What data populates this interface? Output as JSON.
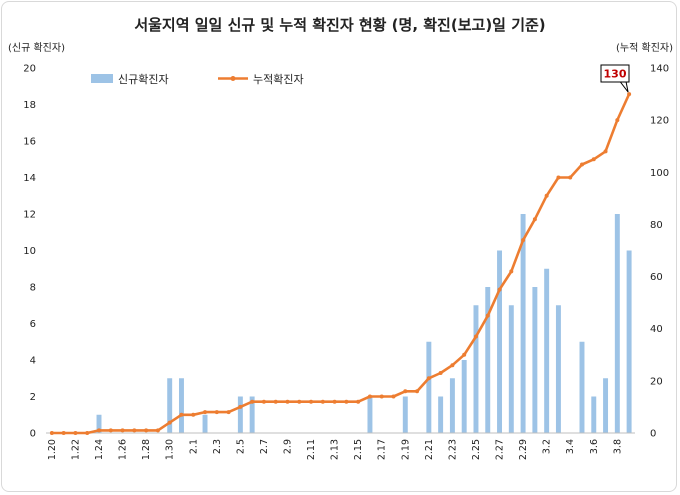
{
  "chart_data": {
    "type": "bar+line",
    "title": "서울지역 일일 신규 및 누적 확진자 현황 (명, 확진(보고)일 기준)",
    "ylabel_left": "(신규 확진자)",
    "ylabel_right": "(누적 확진자)",
    "ylim_left": [
      0,
      20
    ],
    "ylim_right": [
      0,
      140
    ],
    "yticks_left": [
      "0",
      "2",
      "4",
      "6",
      "8",
      "10",
      "12",
      "14",
      "16",
      "18",
      "20"
    ],
    "yticks_right": [
      "0",
      "20",
      "40",
      "60",
      "80",
      "100",
      "120",
      "140"
    ],
    "x": [
      "1.20",
      "1.21",
      "1.22",
      "1.23",
      "1.24",
      "1.25",
      "1.26",
      "1.27",
      "1.28",
      "1.29",
      "1.30",
      "1.31",
      "2.1",
      "2.2",
      "2.3",
      "2.4",
      "2.5",
      "2.6",
      "2.7",
      "2.8",
      "2.9",
      "2.10",
      "2.11",
      "2.12",
      "2.13",
      "2.14",
      "2.15",
      "2.16",
      "2.17",
      "2.18",
      "2.19",
      "2.20",
      "2.21",
      "2.22",
      "2.23",
      "2.24",
      "2.25",
      "2.26",
      "2.27",
      "2.28",
      "2.29",
      "3.1",
      "3.2",
      "3.3",
      "3.4",
      "3.5",
      "3.6",
      "3.7",
      "3.8",
      "3.9"
    ],
    "x_tick_labels": [
      "1.20",
      "1.22",
      "1.24",
      "1.26",
      "1.28",
      "1.30",
      "2.1",
      "2.3",
      "2.5",
      "2.7",
      "2.9",
      "2.11",
      "2.13",
      "2.15",
      "2.17",
      "2.19",
      "2.21",
      "2.23",
      "2.25",
      "2.27",
      "2.29",
      "3.2",
      "3.4",
      "3.6",
      "3.8"
    ],
    "series": [
      {
        "name": "신규확진자",
        "kind": "bar",
        "axis": "left",
        "color": "#9dc3e6",
        "values": [
          0,
          0,
          0,
          0,
          1,
          0,
          0,
          0,
          0,
          0,
          3,
          3,
          0,
          1,
          0,
          0,
          2,
          2,
          0,
          0,
          0,
          0,
          0,
          0,
          0,
          0,
          0,
          2,
          0,
          0,
          2,
          0,
          5,
          2,
          3,
          4,
          7,
          8,
          10,
          7,
          12,
          8,
          9,
          7,
          0,
          5,
          2,
          3,
          12,
          10
        ]
      },
      {
        "name": "누적확진자",
        "kind": "line",
        "axis": "right",
        "color": "#ed7d31",
        "values": [
          0,
          0,
          0,
          0,
          1,
          1,
          1,
          1,
          1,
          1,
          4,
          7,
          7,
          8,
          8,
          8,
          10,
          12,
          12,
          12,
          12,
          12,
          12,
          12,
          12,
          12,
          12,
          14,
          14,
          14,
          16,
          16,
          21,
          23,
          26,
          30,
          37,
          45,
          55,
          62,
          74,
          82,
          91,
          98,
          98,
          103,
          105,
          108,
          120,
          130
        ]
      }
    ],
    "annotation": "130",
    "legend_position": "top-left",
    "grid": false
  }
}
